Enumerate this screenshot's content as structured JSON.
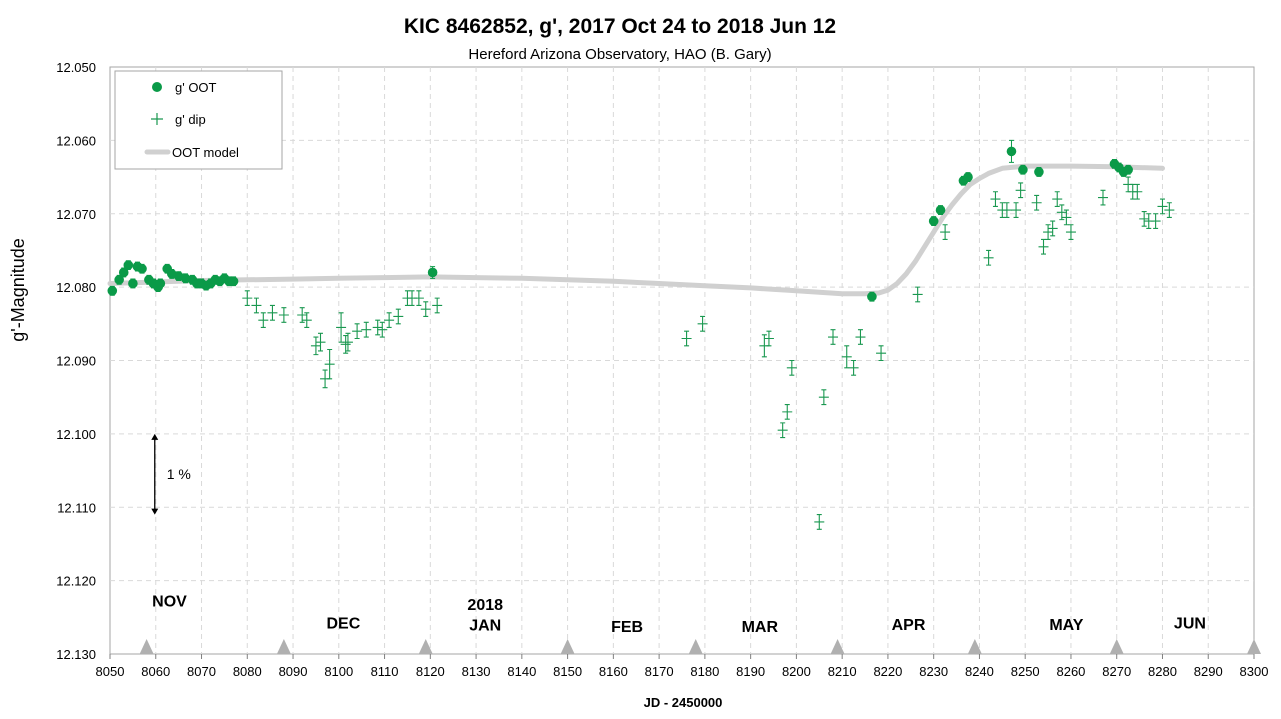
{
  "chart_data": {
    "type": "scatter",
    "title": "KIC 8462852, g', 2017 Oct 24 to 2018 Jun 12",
    "subtitle": "Hereford Arizona Observatory, HAO (B. Gary)",
    "xlabel": "JD - 2450000",
    "ylabel": "g'-Magnitude",
    "xlim": [
      8050,
      8300
    ],
    "ylim": [
      12.05,
      12.13
    ],
    "y_inverted": true,
    "x_ticks": [
      8050,
      8060,
      8070,
      8080,
      8090,
      8100,
      8110,
      8120,
      8130,
      8140,
      8150,
      8160,
      8170,
      8180,
      8190,
      8200,
      8210,
      8220,
      8230,
      8240,
      8250,
      8260,
      8270,
      8280,
      8290,
      8300
    ],
    "y_ticks": [
      "12.050",
      "12.060",
      "12.070",
      "12.080",
      "12.090",
      "12.100",
      "12.110",
      "12.120",
      "12.130"
    ],
    "grid": true,
    "legend_position": "top-left",
    "legend": [
      "g' OOT",
      "g' dip",
      "OOT model"
    ],
    "colors": {
      "oot": "#0a9a48",
      "dip": "#1a9850",
      "model": "#d0d0d0",
      "marker": "#b0b0b0"
    },
    "series": [
      {
        "name": "g' OOT",
        "marker": "circle",
        "points": [
          [
            8050.5,
            12.0805,
            0.0006
          ],
          [
            8052,
            12.079,
            0.0006
          ],
          [
            8053,
            12.078,
            0.0006
          ],
          [
            8054,
            12.077,
            0.0006
          ],
          [
            8055,
            12.0795,
            0.0006
          ],
          [
            8056,
            12.0772,
            0.0006
          ],
          [
            8057,
            12.0775,
            0.0006
          ],
          [
            8058.5,
            12.079,
            0.0006
          ],
          [
            8059.5,
            12.0795,
            0.0006
          ],
          [
            8060.5,
            12.08,
            0.0006
          ],
          [
            8061,
            12.0795,
            0.0006
          ],
          [
            8062.5,
            12.0775,
            0.0006
          ],
          [
            8063.5,
            12.0782,
            0.0006
          ],
          [
            8065,
            12.0785,
            0.0006
          ],
          [
            8066.5,
            12.0788,
            0.0006
          ],
          [
            8068,
            12.079,
            0.0006
          ],
          [
            8069,
            12.0795,
            0.0006
          ],
          [
            8070,
            12.0795,
            0.0006
          ],
          [
            8071,
            12.0798,
            0.0006
          ],
          [
            8072,
            12.0795,
            0.0006
          ],
          [
            8073,
            12.079,
            0.0006
          ],
          [
            8074,
            12.0792,
            0.0006
          ],
          [
            8075,
            12.0788,
            0.0006
          ],
          [
            8076,
            12.0792,
            0.0006
          ],
          [
            8077,
            12.0792,
            0.0006
          ],
          [
            8120.5,
            12.078,
            0.0008
          ],
          [
            8216.5,
            12.0813,
            0.0006
          ],
          [
            8230,
            12.071,
            0.0006
          ],
          [
            8231.5,
            12.0695,
            0.0006
          ],
          [
            8236.5,
            12.0655,
            0.0006
          ],
          [
            8237.5,
            12.065,
            0.0006
          ],
          [
            8247,
            12.0615,
            0.0015
          ],
          [
            8249.5,
            12.064,
            0.0006
          ],
          [
            8253,
            12.0643,
            0.0006
          ],
          [
            8269.5,
            12.0632,
            0.0006
          ],
          [
            8270.5,
            12.0637,
            0.0006
          ],
          [
            8271.5,
            12.0643,
            0.0006
          ],
          [
            8272.5,
            12.064,
            0.0006
          ]
        ]
      },
      {
        "name": "g' dip",
        "marker": "plus",
        "points": [
          [
            8080,
            12.0815,
            0.001
          ],
          [
            8082,
            12.0825,
            0.001
          ],
          [
            8083.5,
            12.0845,
            0.001
          ],
          [
            8085.5,
            12.0835,
            0.001
          ],
          [
            8088,
            12.0838,
            0.001
          ],
          [
            8092,
            12.0838,
            0.001
          ],
          [
            8093,
            12.0845,
            0.001
          ],
          [
            8095,
            12.088,
            0.0012
          ],
          [
            8096,
            12.0875,
            0.0012
          ],
          [
            8097,
            12.0925,
            0.0012
          ],
          [
            8098,
            12.0905,
            0.002
          ],
          [
            8100.5,
            12.0855,
            0.002
          ],
          [
            8101.5,
            12.0878,
            0.0012
          ],
          [
            8102,
            12.0875,
            0.0012
          ],
          [
            8104,
            12.086,
            0.001
          ],
          [
            8106,
            12.0858,
            0.001
          ],
          [
            8108.5,
            12.0855,
            0.001
          ],
          [
            8109.5,
            12.0858,
            0.001
          ],
          [
            8111,
            12.0845,
            0.001
          ],
          [
            8113,
            12.084,
            0.001
          ],
          [
            8115,
            12.0815,
            0.001
          ],
          [
            8116,
            12.0815,
            0.001
          ],
          [
            8117.5,
            12.0815,
            0.001
          ],
          [
            8119,
            12.083,
            0.001
          ],
          [
            8121.5,
            12.0825,
            0.001
          ],
          [
            8176,
            12.087,
            0.001
          ],
          [
            8179.5,
            12.085,
            0.001
          ],
          [
            8193,
            12.088,
            0.0015
          ],
          [
            8194,
            12.087,
            0.001
          ],
          [
            8197,
            12.0995,
            0.001
          ],
          [
            8198,
            12.097,
            0.001
          ],
          [
            8199,
            12.091,
            0.001
          ],
          [
            8205,
            12.112,
            0.001
          ],
          [
            8206,
            12.095,
            0.001
          ],
          [
            8208,
            12.0868,
            0.001
          ],
          [
            8211,
            12.0895,
            0.0015
          ],
          [
            8212.5,
            12.091,
            0.001
          ],
          [
            8214,
            12.0868,
            0.001
          ],
          [
            8218.5,
            12.089,
            0.001
          ],
          [
            8226.5,
            12.081,
            0.001
          ],
          [
            8232.5,
            12.0725,
            0.001
          ],
          [
            8242,
            12.076,
            0.001
          ],
          [
            8243.5,
            12.068,
            0.001
          ],
          [
            8245,
            12.0695,
            0.001
          ],
          [
            8246,
            12.0695,
            0.001
          ],
          [
            8248,
            12.0695,
            0.001
          ],
          [
            8249,
            12.0668,
            0.001
          ],
          [
            8252.5,
            12.0685,
            0.001
          ],
          [
            8254,
            12.0745,
            0.001
          ],
          [
            8255,
            12.0725,
            0.001
          ],
          [
            8256,
            12.072,
            0.001
          ],
          [
            8257,
            12.068,
            0.001
          ],
          [
            8258,
            12.0698,
            0.001
          ],
          [
            8259,
            12.0705,
            0.001
          ],
          [
            8260,
            12.0725,
            0.001
          ],
          [
            8267,
            12.0678,
            0.001
          ],
          [
            8272.5,
            12.066,
            0.001
          ],
          [
            8273.5,
            12.067,
            0.001
          ],
          [
            8274.5,
            12.067,
            0.001
          ],
          [
            8276,
            12.0707,
            0.001
          ],
          [
            8277,
            12.071,
            0.001
          ],
          [
            8278.5,
            12.071,
            0.001
          ],
          [
            8280,
            12.069,
            0.001
          ],
          [
            8281.5,
            12.0695,
            0.001
          ]
        ]
      },
      {
        "name": "OOT model",
        "marker": "line",
        "x": [
          8050,
          8060,
          8070,
          8080,
          8090,
          8100,
          8110,
          8120,
          8130,
          8140,
          8150,
          8160,
          8170,
          8180,
          8190,
          8200,
          8205,
          8210,
          8215,
          8218,
          8220,
          8222,
          8224,
          8226,
          8228,
          8230,
          8232,
          8234,
          8236,
          8238,
          8240,
          8242,
          8245,
          8250,
          8260,
          8270,
          8280
        ],
        "y": [
          12.0795,
          12.0793,
          12.0791,
          12.079,
          12.0789,
          12.0788,
          12.0787,
          12.0786,
          12.0787,
          12.0788,
          12.079,
          12.0792,
          12.0795,
          12.0798,
          12.0801,
          12.0805,
          12.0807,
          12.0809,
          12.0809,
          12.0808,
          12.0804,
          12.0795,
          12.0782,
          12.0765,
          12.0745,
          12.0725,
          12.0705,
          12.0688,
          12.0673,
          12.066,
          12.0652,
          12.0645,
          12.0638,
          12.0635,
          12.0635,
          12.0636,
          12.0638
        ]
      }
    ],
    "month_labels": [
      {
        "text": "NOV",
        "x": 8063,
        "y": 12.1235
      },
      {
        "text": "DEC",
        "x": 8101,
        "y": 12.1265
      },
      {
        "text": "2018",
        "x": 8132,
        "y": 12.124
      },
      {
        "text": "JAN",
        "x": 8132,
        "y": 12.1268
      },
      {
        "text": "FEB",
        "x": 8163,
        "y": 12.127
      },
      {
        "text": "MAR",
        "x": 8192,
        "y": 12.127
      },
      {
        "text": "APR",
        "x": 8224.5,
        "y": 12.1267
      },
      {
        "text": "MAY",
        "x": 8259,
        "y": 12.1267
      },
      {
        "text": "JUN",
        "x": 8286,
        "y": 12.1265
      }
    ],
    "month_markers": [
      8058,
      8088,
      8119,
      8150,
      8178,
      8209,
      8239,
      8270,
      8300
    ],
    "scale_annotation": {
      "label": "1 %",
      "x": 8060,
      "y_top": 12.1,
      "y_bottom": 12.111
    }
  }
}
